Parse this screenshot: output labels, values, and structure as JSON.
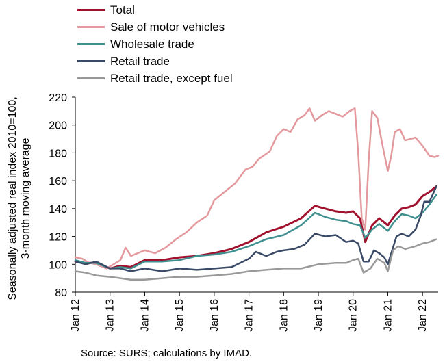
{
  "chart_data": {
    "type": "line",
    "ylabel_lines": [
      "Seasonally adjusted real index 2010=100,",
      "3-month moving average"
    ],
    "ylim": [
      80,
      220
    ],
    "yticks": [
      80,
      100,
      120,
      140,
      160,
      180,
      200,
      220
    ],
    "x_ticks": [
      "Jan 12",
      "Jan 13",
      "Jan 14",
      "Jan 15",
      "Jan 16",
      "Jan 17",
      "Jan 18",
      "Jan 19",
      "Jan 20",
      "Jan 21",
      "Jan 22"
    ],
    "xlim": [
      2012.0,
      2022.45
    ],
    "grid": false,
    "legend_position": "top-left",
    "series": [
      {
        "name": "Total",
        "color": "#a0112e",
        "width": 3,
        "x": [
          2012.0,
          2012.3,
          2012.6,
          2013.0,
          2013.3,
          2013.6,
          2014.0,
          2014.5,
          2015.0,
          2015.5,
          2016.0,
          2016.5,
          2017.0,
          2017.5,
          2018.0,
          2018.5,
          2018.9,
          2019.2,
          2019.5,
          2019.8,
          2020.0,
          2020.2,
          2020.35,
          2020.55,
          2020.75,
          2021.0,
          2021.2,
          2021.4,
          2021.6,
          2021.8,
          2022.0,
          2022.2,
          2022.4
        ],
        "y": [
          102,
          101,
          101,
          97,
          99,
          98,
          103,
          103,
          105,
          106,
          108,
          111,
          116,
          123,
          127,
          133,
          142,
          140,
          138,
          137,
          138,
          133,
          116,
          128,
          133,
          128,
          135,
          140,
          141,
          143,
          149,
          152,
          156
        ]
      },
      {
        "name": "Sale of motor vehicles",
        "color": "#e3999d",
        "width": 2.5,
        "x": [
          2012.0,
          2012.2,
          2012.4,
          2012.6,
          2012.9,
          2013.1,
          2013.3,
          2013.45,
          2013.6,
          2013.8,
          2014.0,
          2014.3,
          2014.6,
          2014.9,
          2015.2,
          2015.5,
          2015.8,
          2016.0,
          2016.3,
          2016.6,
          2016.9,
          2017.1,
          2017.3,
          2017.6,
          2017.8,
          2018.0,
          2018.2,
          2018.4,
          2018.6,
          2018.75,
          2018.9,
          2019.1,
          2019.3,
          2019.5,
          2019.7,
          2019.9,
          2020.05,
          2020.15,
          2020.25,
          2020.35,
          2020.45,
          2020.55,
          2020.7,
          2020.85,
          2021.0,
          2021.1,
          2021.2,
          2021.35,
          2021.5,
          2021.65,
          2021.8,
          2022.0,
          2022.2,
          2022.35,
          2022.45
        ],
        "y": [
          105,
          104,
          101,
          100,
          97,
          100,
          103,
          112,
          106,
          108,
          110,
          108,
          112,
          118,
          123,
          130,
          135,
          146,
          152,
          158,
          168,
          170,
          176,
          181,
          192,
          197,
          195,
          204,
          207,
          212,
          203,
          207,
          210,
          208,
          206,
          210,
          212,
          180,
          133,
          125,
          175,
          210,
          205,
          185,
          167,
          178,
          195,
          197,
          189,
          190,
          191,
          185,
          178,
          177,
          178
        ]
      },
      {
        "name": "Wholesale trade",
        "color": "#3f8f8f",
        "width": 2.5,
        "x": [
          2012.0,
          2012.3,
          2012.6,
          2013.0,
          2013.3,
          2013.6,
          2014.0,
          2014.5,
          2015.0,
          2015.5,
          2016.0,
          2016.5,
          2017.0,
          2017.5,
          2018.0,
          2018.5,
          2018.9,
          2019.2,
          2019.5,
          2019.8,
          2020.0,
          2020.2,
          2020.35,
          2020.55,
          2020.75,
          2021.0,
          2021.2,
          2021.4,
          2021.6,
          2021.8,
          2022.0,
          2022.2,
          2022.4
        ],
        "y": [
          103,
          101,
          101,
          97,
          98,
          97,
          102,
          102,
          103,
          106,
          107,
          109,
          113,
          118,
          121,
          128,
          137,
          134,
          132,
          131,
          129,
          128,
          119,
          125,
          129,
          124,
          131,
          136,
          135,
          133,
          137,
          143,
          150
        ]
      },
      {
        "name": "Retail trade",
        "color": "#3a4a66",
        "width": 2.5,
        "x": [
          2012.0,
          2012.3,
          2012.6,
          2013.0,
          2013.3,
          2013.6,
          2014.0,
          2014.5,
          2015.0,
          2015.5,
          2016.0,
          2016.5,
          2017.0,
          2017.2,
          2017.5,
          2017.8,
          2018.0,
          2018.3,
          2018.6,
          2018.9,
          2019.2,
          2019.5,
          2019.8,
          2020.0,
          2020.15,
          2020.3,
          2020.45,
          2020.6,
          2020.75,
          2020.9,
          2021.0,
          2021.1,
          2021.25,
          2021.4,
          2021.6,
          2021.8,
          2021.95,
          2022.05,
          2022.2,
          2022.4
        ],
        "y": [
          102,
          100,
          102,
          97,
          97,
          95,
          97,
          95,
          97,
          96,
          97,
          98,
          104,
          109,
          106,
          109,
          110,
          111,
          114,
          122,
          120,
          121,
          116,
          117,
          115,
          102,
          102,
          110,
          108,
          105,
          100,
          108,
          120,
          122,
          120,
          125,
          135,
          145,
          145,
          156
        ]
      },
      {
        "name": "Retail trade, except fuel",
        "color": "#999999",
        "width": 2.5,
        "x": [
          2012.0,
          2012.3,
          2012.6,
          2013.0,
          2013.3,
          2013.6,
          2014.0,
          2014.5,
          2015.0,
          2015.5,
          2016.0,
          2016.5,
          2017.0,
          2017.5,
          2018.0,
          2018.5,
          2019.0,
          2019.5,
          2019.8,
          2020.0,
          2020.15,
          2020.3,
          2020.5,
          2020.7,
          2020.9,
          2021.0,
          2021.15,
          2021.3,
          2021.5,
          2021.8,
          2022.0,
          2022.2,
          2022.4
        ],
        "y": [
          95,
          94,
          92,
          91,
          90,
          89,
          89,
          90,
          91,
          91,
          92,
          93,
          95,
          96,
          97,
          97,
          100,
          101,
          101,
          103,
          104,
          94,
          97,
          104,
          101,
          95,
          110,
          113,
          111,
          113,
          115,
          116,
          118
        ]
      }
    ]
  },
  "source": "Source: SURS; calculations by IMAD."
}
